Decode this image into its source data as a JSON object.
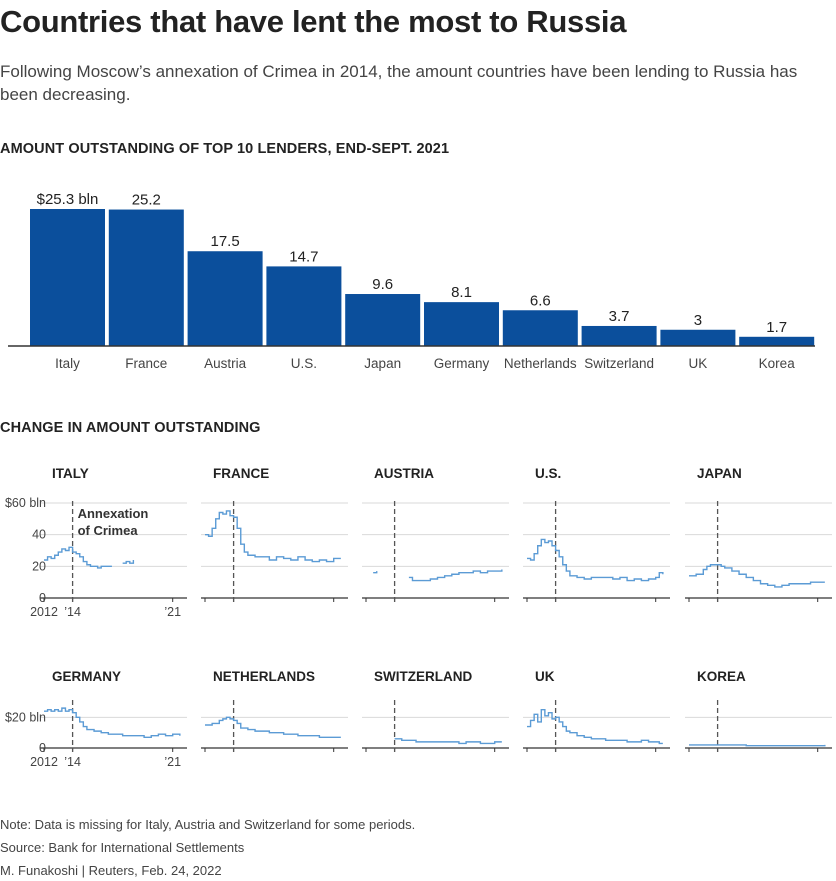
{
  "title": "Countries that have lent the most to Russia",
  "subtitle": "Following Moscow’s annexation of Crimea in 2014, the amount countries have been lending to Russia has been decreasing.",
  "bar_section_title": "AMOUNT OUTSTANDING OF TOP 10 LENDERS, END-SEPT. 2021",
  "change_section_title": "CHANGE IN AMOUNT OUTSTANDING",
  "note": "Note: Data is missing for Italy, Austria and Switzerland for some periods.",
  "source": "Source: Bank for International Settlements",
  "credit": "M. Funakoshi | Reuters, Feb. 24, 2022",
  "colors": {
    "bar": "#0b4f9c",
    "line": "#5b9bd5",
    "axis": "#333333",
    "grid": "#d9d9d9",
    "dash": "#555555"
  },
  "chart_data": [
    {
      "type": "bar",
      "categories": [
        "Italy",
        "France",
        "Austria",
        "U.S.",
        "Japan",
        "Germany",
        "Netherlands",
        "Switzerland",
        "UK",
        "Korea"
      ],
      "values": [
        25.3,
        25.2,
        17.5,
        14.7,
        9.6,
        8.1,
        6.6,
        3.7,
        3,
        1.7
      ],
      "value_labels": [
        "$25.3 bln",
        "25.2",
        "17.5",
        "14.7",
        "9.6",
        "8.1",
        "6.6",
        "3.7",
        "3",
        "1.7"
      ],
      "ylim": [
        0,
        27
      ]
    },
    {
      "type": "line",
      "group": "top-row",
      "y_ticks": [
        "$60 bln",
        "40",
        "20",
        "0"
      ],
      "y_tick_values": [
        60,
        40,
        20,
        0
      ],
      "ylim": [
        0,
        60
      ],
      "xlim": [
        2012,
        2022
      ],
      "x_tick_labels": [
        "2012",
        "’14",
        "’21"
      ],
      "x_tick_values": [
        2012,
        2014,
        2021
      ],
      "annotation": {
        "x": 2014,
        "text": [
          "Annexation",
          "of Crimea"
        ]
      },
      "series": [
        {
          "name": "ITALY",
          "x": [
            2012,
            2012.25,
            2012.5,
            2012.75,
            2013,
            2013.25,
            2013.5,
            2013.75,
            2014,
            2014.25,
            2014.5,
            2014.75,
            2015,
            2015.25,
            2015.5,
            2015.75,
            2016,
            2016.25,
            2016.5,
            2016.75,
            null,
            2017.5,
            2017.75,
            2018,
            2018.25
          ],
          "y": [
            24,
            26,
            25,
            27,
            29,
            31,
            30,
            32,
            29,
            28,
            26,
            23,
            21,
            20,
            20,
            19,
            20,
            20,
            20,
            20,
            null,
            22,
            23,
            22,
            24
          ]
        },
        {
          "name": "FRANCE",
          "x": [
            2012,
            2012.25,
            2012.5,
            2012.75,
            2013,
            2013.25,
            2013.5,
            2013.75,
            2014,
            2014.25,
            2014.5,
            2014.75,
            2015,
            2015.5,
            2016,
            2016.5,
            2017,
            2017.5,
            2018,
            2018.5,
            2019,
            2019.5,
            2020,
            2020.5,
            2021,
            2021.5
          ],
          "y": [
            40,
            39,
            44,
            50,
            54,
            53,
            55,
            52,
            51,
            44,
            34,
            29,
            27,
            26,
            26,
            24,
            26,
            25,
            24,
            26,
            24,
            23,
            24,
            23,
            25,
            25
          ]
        },
        {
          "name": "AUSTRIA",
          "x": [
            2012.5,
            2012.75,
            null,
            2015,
            2015.25,
            2015.5,
            2016,
            2016.5,
            2017,
            2017.5,
            2018,
            2018.5,
            2019,
            2019.5,
            2020,
            2020.5,
            2021,
            2021.5
          ],
          "y": [
            16,
            17,
            null,
            13,
            11,
            11,
            11,
            12,
            13,
            14,
            15,
            16,
            16,
            17,
            16,
            17,
            17,
            18
          ]
        },
        {
          "name": "U.S.",
          "x": [
            2012,
            2012.25,
            2012.5,
            2012.75,
            2013,
            2013.25,
            2013.5,
            2013.75,
            2014,
            2014.25,
            2014.5,
            2014.75,
            2015,
            2015.5,
            2016,
            2016.5,
            2017,
            2017.5,
            2018,
            2018.5,
            2019,
            2019.5,
            2020,
            2020.5,
            2021,
            2021.25,
            2021.5
          ],
          "y": [
            25,
            24,
            28,
            33,
            37,
            35,
            36,
            33,
            30,
            26,
            21,
            17,
            14,
            13,
            12,
            13,
            13,
            13,
            12,
            13,
            11,
            12,
            11,
            12,
            13,
            16,
            15
          ]
        },
        {
          "name": "JAPAN",
          "x": [
            2012,
            2012.5,
            2013,
            2013.25,
            2013.5,
            2014,
            2014.25,
            2014.5,
            2015,
            2015.5,
            2016,
            2016.5,
            2017,
            2017.5,
            2018,
            2018.5,
            2019,
            2019.5,
            2020,
            2020.5,
            2021,
            2021.5
          ],
          "y": [
            14,
            15,
            18,
            20,
            21,
            21,
            20,
            19,
            17,
            15,
            13,
            11,
            9,
            8,
            7,
            8,
            9,
            9,
            9,
            10,
            10,
            10
          ]
        }
      ]
    },
    {
      "type": "line",
      "group": "bottom-row",
      "y_ticks": [
        "$20 bln",
        "0"
      ],
      "y_tick_values": [
        20,
        0
      ],
      "ylim": [
        0,
        30
      ],
      "xlim": [
        2012,
        2022
      ],
      "x_tick_labels": [
        "2012",
        "’14",
        "’21"
      ],
      "x_tick_values": [
        2012,
        2014,
        2021
      ],
      "series": [
        {
          "name": "GERMANY",
          "x": [
            2012,
            2012.25,
            2012.5,
            2012.75,
            2013,
            2013.25,
            2013.5,
            2013.75,
            2014,
            2014.25,
            2014.5,
            2014.75,
            2015,
            2015.5,
            2016,
            2016.5,
            2017,
            2017.5,
            2018,
            2018.5,
            2019,
            2019.5,
            2020,
            2020.5,
            2021,
            2021.5
          ],
          "y": [
            24,
            25,
            24,
            25,
            24,
            26,
            24,
            25,
            23,
            20,
            17,
            14,
            12,
            11,
            10,
            9,
            9,
            8,
            8,
            8,
            7,
            8,
            9,
            8,
            9,
            8
          ]
        },
        {
          "name": "NETHERLANDS",
          "x": [
            2012,
            2012.5,
            2013,
            2013.25,
            2013.5,
            2013.75,
            2014,
            2014.25,
            2014.5,
            2015,
            2015.5,
            2016,
            2016.5,
            2017,
            2017.5,
            2018,
            2018.5,
            2019,
            2019.5,
            2020,
            2020.5,
            2021,
            2021.5
          ],
          "y": [
            15,
            16,
            18,
            19,
            20,
            19,
            18,
            16,
            13,
            12,
            11,
            11,
            10,
            10,
            9,
            9,
            8,
            8,
            8,
            7,
            7,
            7,
            7
          ]
        },
        {
          "name": "SWITZERLAND",
          "x": [
            2014,
            2014.5,
            2015,
            2015.5,
            2016,
            2016.5,
            2017,
            2017.5,
            2018,
            2018.5,
            2019,
            2019.5,
            2020,
            2020.5,
            2021,
            2021.5
          ],
          "y": [
            6,
            5,
            5,
            4,
            4,
            4,
            4,
            4,
            4,
            3,
            4,
            4,
            3,
            3,
            4,
            4
          ]
        },
        {
          "name": "UK",
          "x": [
            2012,
            2012.25,
            2012.5,
            2012.75,
            2013,
            2013.25,
            2013.5,
            2013.75,
            2014,
            2014.25,
            2014.5,
            2014.75,
            2015,
            2015.5,
            2016,
            2016.5,
            2017,
            2017.5,
            2018,
            2018.5,
            2019,
            2019.5,
            2020,
            2020.5,
            2021,
            2021.25,
            2021.5
          ],
          "y": [
            14,
            18,
            22,
            17,
            25,
            21,
            23,
            19,
            20,
            17,
            14,
            11,
            10,
            8,
            7,
            6,
            6,
            5,
            5,
            5,
            4,
            4,
            5,
            4,
            4,
            3,
            3
          ]
        },
        {
          "name": "KOREA",
          "x": [
            2012,
            2012.5,
            2013,
            2013.5,
            2014,
            2014.5,
            2015,
            2016,
            2017,
            2018,
            2019,
            2020,
            2021,
            2021.5
          ],
          "y": [
            2,
            2,
            2,
            2,
            2,
            2,
            2,
            1.5,
            1.5,
            1.5,
            1.5,
            1.5,
            1.5,
            2
          ]
        }
      ]
    }
  ]
}
